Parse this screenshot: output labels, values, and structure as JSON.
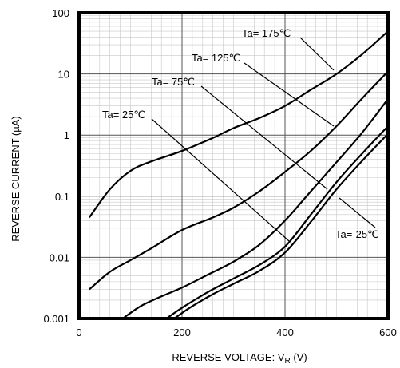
{
  "chart_data": {
    "type": "line",
    "title": "",
    "xlabel": "REVERSE VOLTAGE: V",
    "xlabel_sub": "R",
    "xlabel_unit": " (V)",
    "ylabel": "REVERSE CURRENT (µA)",
    "xlim": [
      0,
      600
    ],
    "ylim": [
      0.001,
      100
    ],
    "yscale": "log",
    "grid": true,
    "x_ticks": [
      {
        "value": 0,
        "label": "0"
      },
      {
        "value": 200,
        "label": "200"
      },
      {
        "value": 400,
        "label": "400"
      },
      {
        "value": 600,
        "label": "600"
      }
    ],
    "y_ticks": [
      {
        "value": 100,
        "label": "100"
      },
      {
        "value": 10,
        "label": "10"
      },
      {
        "value": 1,
        "label": "1"
      },
      {
        "value": 0.1,
        "label": "0.1"
      },
      {
        "value": 0.01,
        "label": "0.01"
      },
      {
        "value": 0.001,
        "label": "0.001"
      }
    ],
    "series": [
      {
        "name": "Ta= 175℃",
        "x": [
          20,
          60,
          100,
          140,
          200,
          260,
          300,
          350,
          400,
          450,
          500,
          550,
          600
        ],
        "y": [
          0.045,
          0.13,
          0.26,
          0.37,
          0.55,
          0.9,
          1.3,
          1.9,
          3.0,
          5.5,
          10,
          21,
          50
        ]
      },
      {
        "name": "Ta= 125℃",
        "x": [
          20,
          60,
          100,
          140,
          200,
          260,
          300,
          350,
          400,
          450,
          500,
          550,
          600
        ],
        "y": [
          0.003,
          0.0058,
          0.009,
          0.014,
          0.028,
          0.045,
          0.065,
          0.12,
          0.25,
          0.55,
          1.4,
          4.0,
          11
        ]
      },
      {
        "name": "Ta= 75℃",
        "x": [
          85,
          120,
          160,
          200,
          250,
          300,
          350,
          400,
          450,
          500,
          550,
          600
        ],
        "y": [
          0.001,
          0.0016,
          0.0023,
          0.0032,
          0.0052,
          0.0085,
          0.016,
          0.04,
          0.12,
          0.36,
          1.1,
          3.9
        ]
      },
      {
        "name": "Ta= 25℃",
        "x": [
          170,
          200,
          250,
          300,
          350,
          400,
          450,
          500,
          550,
          600
        ],
        "y": [
          0.001,
          0.0015,
          0.0027,
          0.0045,
          0.0075,
          0.015,
          0.05,
          0.17,
          0.5,
          1.4
        ]
      },
      {
        "name": "Ta=-25℃",
        "x": [
          185,
          215,
          260,
          300,
          350,
          400,
          450,
          500,
          550,
          600
        ],
        "y": [
          0.001,
          0.0015,
          0.0025,
          0.0037,
          0.006,
          0.012,
          0.038,
          0.13,
          0.38,
          1.05
        ]
      }
    ],
    "annotations": [
      {
        "text": "Ta= 175℃",
        "series": 0
      },
      {
        "text": "Ta= 125℃",
        "series": 1
      },
      {
        "text": "Ta= 75℃",
        "series": 2
      },
      {
        "text": "Ta= 25℃",
        "series": 3
      },
      {
        "text": "Ta=-25℃",
        "series": 4
      }
    ]
  }
}
